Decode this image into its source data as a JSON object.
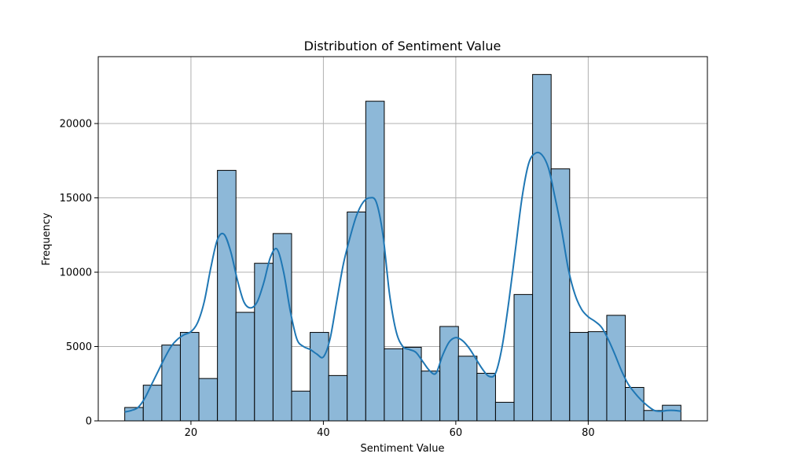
{
  "chart_data": {
    "type": "bar",
    "title": "Distribution of Sentiment Value",
    "xlabel": "Sentiment Value",
    "ylabel": "Frequency",
    "xlim": [
      6,
      98
    ],
    "ylim": [
      0,
      24500
    ],
    "x_ticks": [
      20,
      40,
      60,
      80
    ],
    "y_ticks": [
      0,
      5000,
      10000,
      15000,
      20000
    ],
    "grid": true,
    "bar_color": "#8db8d8",
    "bar_edge_color": "#000000",
    "kde_color": "#1f77b4",
    "bins": [
      {
        "x0": 10.0,
        "x1": 12.8,
        "value": 900
      },
      {
        "x0": 12.8,
        "x1": 15.6,
        "value": 2400
      },
      {
        "x0": 15.6,
        "x1": 18.4,
        "value": 5100
      },
      {
        "x0": 18.4,
        "x1": 21.2,
        "value": 5950
      },
      {
        "x0": 21.2,
        "x1": 24.0,
        "value": 2850
      },
      {
        "x0": 24.0,
        "x1": 26.8,
        "value": 16850
      },
      {
        "x0": 26.8,
        "x1": 29.6,
        "value": 7300
      },
      {
        "x0": 29.6,
        "x1": 32.4,
        "value": 10600
      },
      {
        "x0": 32.4,
        "x1": 35.2,
        "value": 12600
      },
      {
        "x0": 35.2,
        "x1": 38.0,
        "value": 2000
      },
      {
        "x0": 38.0,
        "x1": 40.8,
        "value": 5950
      },
      {
        "x0": 40.8,
        "x1": 43.6,
        "value": 3050
      },
      {
        "x0": 43.6,
        "x1": 46.4,
        "value": 14050
      },
      {
        "x0": 46.4,
        "x1": 49.2,
        "value": 21500
      },
      {
        "x0": 49.2,
        "x1": 52.0,
        "value": 4850
      },
      {
        "x0": 52.0,
        "x1": 54.8,
        "value": 4950
      },
      {
        "x0": 54.8,
        "x1": 57.6,
        "value": 3350
      },
      {
        "x0": 57.6,
        "x1": 60.4,
        "value": 6350
      },
      {
        "x0": 60.4,
        "x1": 63.2,
        "value": 4350
      },
      {
        "x0": 63.2,
        "x1": 66.0,
        "value": 3200
      },
      {
        "x0": 66.0,
        "x1": 68.8,
        "value": 1250
      },
      {
        "x0": 68.8,
        "x1": 71.6,
        "value": 8500
      },
      {
        "x0": 71.6,
        "x1": 74.4,
        "value": 23300
      },
      {
        "x0": 74.4,
        "x1": 77.2,
        "value": 16950
      },
      {
        "x0": 77.2,
        "x1": 80.0,
        "value": 5950
      },
      {
        "x0": 80.0,
        "x1": 82.8,
        "value": 6000
      },
      {
        "x0": 82.8,
        "x1": 85.6,
        "value": 7100
      },
      {
        "x0": 85.6,
        "x1": 88.4,
        "value": 2250
      },
      {
        "x0": 88.4,
        "x1": 91.2,
        "value": 700
      },
      {
        "x0": 91.2,
        "x1": 94.0,
        "value": 1050
      }
    ],
    "kde_curve": {
      "x": [
        10,
        11,
        12,
        13,
        14,
        15,
        16,
        17,
        18,
        19,
        20,
        21,
        22,
        23,
        24,
        25,
        26,
        27,
        28,
        29,
        30,
        31,
        32,
        33,
        34,
        35,
        36,
        37,
        38,
        39,
        40,
        41,
        42,
        43,
        44,
        45,
        46,
        47,
        48,
        49,
        50,
        51,
        52,
        53,
        54,
        55,
        56,
        57,
        58,
        59,
        60,
        61,
        62,
        63,
        64,
        65,
        66,
        67,
        68,
        69,
        70,
        71,
        72,
        73,
        74,
        75,
        76,
        77,
        78,
        79,
        80,
        81,
        82,
        83,
        84,
        85,
        86,
        87,
        88,
        89,
        90,
        91,
        92,
        93,
        94
      ],
      "y": [
        600,
        700,
        900,
        1500,
        2400,
        3300,
        4200,
        5000,
        5500,
        5800,
        6000,
        6600,
        8000,
        10300,
        12200,
        12550,
        11400,
        9500,
        8000,
        7600,
        8000,
        9300,
        11000,
        11550,
        10000,
        7400,
        5500,
        5000,
        4800,
        4500,
        4300,
        5500,
        8000,
        10500,
        12300,
        13800,
        14700,
        15000,
        14700,
        12500,
        8500,
        6000,
        5000,
        4800,
        4600,
        4000,
        3400,
        3200,
        4400,
        5300,
        5600,
        5400,
        4900,
        4200,
        3500,
        3000,
        3200,
        5000,
        8000,
        11500,
        15000,
        17300,
        18000,
        17900,
        17000,
        15000,
        12800,
        10200,
        8500,
        7500,
        7000,
        6700,
        6300,
        5500,
        4500,
        3400,
        2500,
        1900,
        1400,
        1000,
        700,
        650,
        700,
        700,
        650
      ]
    }
  }
}
